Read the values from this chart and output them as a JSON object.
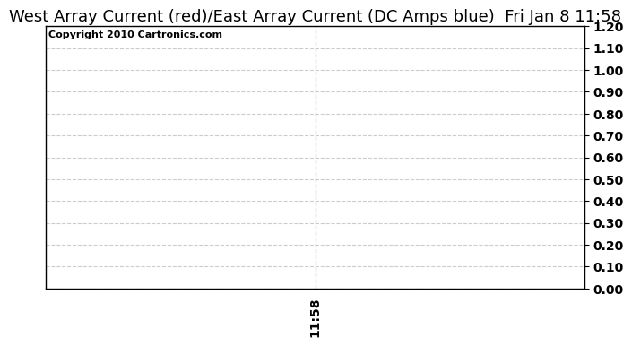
{
  "title": "West Array Current (red)/East Array Current (DC Amps blue)  Fri Jan 8 11:58",
  "copyright_text": "Copyright 2010 Cartronics.com",
  "background_color": "#ffffff",
  "plot_bg_color": "#ffffff",
  "ylim": [
    0.0,
    1.2
  ],
  "yticks": [
    0.0,
    0.1,
    0.2,
    0.3,
    0.4,
    0.5,
    0.6,
    0.7,
    0.8,
    0.9,
    1.0,
    1.1,
    1.2
  ],
  "xlim": [
    0,
    1
  ],
  "xtick_value": 0.5,
  "xtick_label": "11:58",
  "grid_color": "#cccccc",
  "grid_style": "--",
  "vline_x": 0.5,
  "vline_color": "#aaaaaa",
  "vline_style": "--",
  "title_fontsize": 13,
  "copyright_fontsize": 8,
  "tick_fontsize": 10,
  "figsize": [
    6.9,
    3.75
  ],
  "dpi": 100
}
